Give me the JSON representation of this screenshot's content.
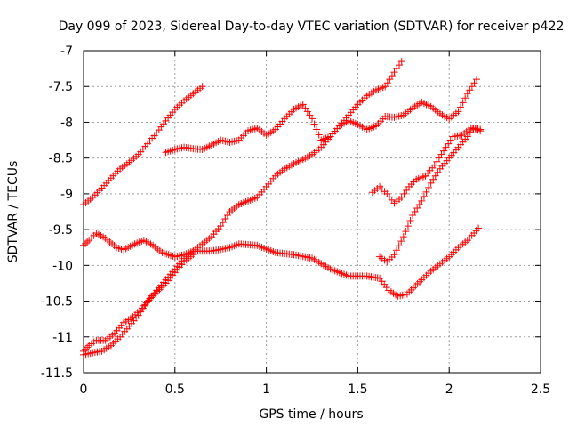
{
  "chart_data": {
    "type": "scatter",
    "title": "Day 099 of 2023, Sidereal Day-to-day VTEC variation (SDTVAR) for receiver p422",
    "xlabel": "GPS time / hours",
    "ylabel": "SDTVAR / TECUs",
    "xlim": [
      0,
      2.5
    ],
    "ylim": [
      -11.5,
      -7
    ],
    "xticks": [
      "0",
      "0.5",
      "1",
      "1.5",
      "2",
      "2.5"
    ],
    "yticks": [
      "-7",
      "-7.5",
      "-8",
      "-8.5",
      "-9",
      "-9.5",
      "-10",
      "-10.5",
      "-11",
      "-11.5"
    ],
    "xtick_values": [
      0,
      0.5,
      1,
      1.5,
      2,
      2.5
    ],
    "ytick_values": [
      -7,
      -7.5,
      -8,
      -8.5,
      -9,
      -9.5,
      -10,
      -10.5,
      -11,
      -11.5
    ],
    "grid": true,
    "marker": "+",
    "color": "#ff0000",
    "series": [
      {
        "points": [
          [
            0,
            -9.15
          ],
          [
            0.05,
            -9.05
          ],
          [
            0.1,
            -8.92
          ],
          [
            0.15,
            -8.78
          ],
          [
            0.2,
            -8.65
          ],
          [
            0.25,
            -8.56
          ],
          [
            0.3,
            -8.45
          ],
          [
            0.35,
            -8.3
          ],
          [
            0.4,
            -8.15
          ],
          [
            0.45,
            -7.98
          ],
          [
            0.5,
            -7.82
          ],
          [
            0.55,
            -7.7
          ],
          [
            0.6,
            -7.6
          ],
          [
            0.65,
            -7.5
          ]
        ]
      },
      {
        "points": [
          [
            0.45,
            -8.42
          ],
          [
            0.5,
            -8.38
          ],
          [
            0.55,
            -8.35
          ],
          [
            0.6,
            -8.37
          ],
          [
            0.65,
            -8.38
          ],
          [
            0.7,
            -8.32
          ],
          [
            0.75,
            -8.25
          ],
          [
            0.8,
            -8.28
          ],
          [
            0.85,
            -8.25
          ],
          [
            0.9,
            -8.12
          ],
          [
            0.95,
            -8.08
          ],
          [
            1.0,
            -8.18
          ],
          [
            1.05,
            -8.1
          ],
          [
            1.1,
            -7.95
          ],
          [
            1.15,
            -7.82
          ],
          [
            1.2,
            -7.75
          ],
          [
            1.25,
            -7.95
          ],
          [
            1.3,
            -8.25
          ],
          [
            1.35,
            -8.2
          ],
          [
            1.4,
            -8.05
          ],
          [
            1.45,
            -7.98
          ],
          [
            1.5,
            -8.03
          ],
          [
            1.55,
            -8.1
          ],
          [
            1.6,
            -8.05
          ],
          [
            1.65,
            -7.92
          ],
          [
            1.7,
            -7.93
          ],
          [
            1.75,
            -7.9
          ],
          [
            1.8,
            -7.8
          ],
          [
            1.85,
            -7.72
          ],
          [
            1.9,
            -7.78
          ],
          [
            1.95,
            -7.88
          ],
          [
            2.0,
            -7.95
          ],
          [
            2.05,
            -7.85
          ],
          [
            2.1,
            -7.6
          ],
          [
            2.15,
            -7.4
          ]
        ]
      },
      {
        "points": [
          [
            0,
            -9.72
          ],
          [
            0.03,
            -9.65
          ],
          [
            0.07,
            -9.55
          ],
          [
            0.12,
            -9.62
          ],
          [
            0.18,
            -9.75
          ],
          [
            0.22,
            -9.78
          ],
          [
            0.28,
            -9.7
          ],
          [
            0.33,
            -9.65
          ],
          [
            0.38,
            -9.72
          ],
          [
            0.43,
            -9.82
          ],
          [
            0.5,
            -9.88
          ],
          [
            0.55,
            -9.85
          ],
          [
            0.6,
            -9.8
          ],
          [
            0.7,
            -9.8
          ],
          [
            0.8,
            -9.75
          ],
          [
            0.85,
            -9.7
          ],
          [
            0.95,
            -9.72
          ],
          [
            1.05,
            -9.82
          ],
          [
            1.15,
            -9.85
          ],
          [
            1.25,
            -9.9
          ],
          [
            1.35,
            -10.05
          ],
          [
            1.45,
            -10.15
          ],
          [
            1.55,
            -10.15
          ],
          [
            1.62,
            -10.18
          ],
          [
            1.67,
            -10.35
          ],
          [
            1.72,
            -10.43
          ],
          [
            1.77,
            -10.4
          ],
          [
            1.85,
            -10.2
          ],
          [
            1.9,
            -10.08
          ],
          [
            1.95,
            -9.98
          ],
          [
            2.0,
            -9.88
          ],
          [
            2.05,
            -9.75
          ],
          [
            2.1,
            -9.65
          ],
          [
            2.16,
            -9.48
          ]
        ]
      },
      {
        "points": [
          [
            0,
            -11.25
          ],
          [
            0.05,
            -11.22
          ],
          [
            0.1,
            -11.2
          ],
          [
            0.15,
            -11.12
          ],
          [
            0.2,
            -11.0
          ],
          [
            0.25,
            -10.85
          ],
          [
            0.3,
            -10.7
          ],
          [
            0.35,
            -10.5
          ],
          [
            0.4,
            -10.35
          ],
          [
            0.45,
            -10.2
          ],
          [
            0.5,
            -10.05
          ],
          [
            0.55,
            -9.9
          ],
          [
            0.6,
            -9.8
          ],
          [
            0.65,
            -9.7
          ],
          [
            0.7,
            -9.6
          ],
          [
            0.75,
            -9.45
          ],
          [
            0.8,
            -9.25
          ],
          [
            0.85,
            -9.15
          ],
          [
            0.9,
            -9.1
          ],
          [
            0.95,
            -9.05
          ],
          [
            1.0,
            -8.9
          ],
          [
            1.05,
            -8.75
          ],
          [
            1.1,
            -8.65
          ],
          [
            1.15,
            -8.58
          ],
          [
            1.2,
            -8.52
          ],
          [
            1.25,
            -8.45
          ],
          [
            1.3,
            -8.35
          ],
          [
            1.35,
            -8.2
          ],
          [
            1.4,
            -8.05
          ],
          [
            1.45,
            -7.9
          ],
          [
            1.5,
            -7.75
          ],
          [
            1.55,
            -7.63
          ],
          [
            1.6,
            -7.55
          ],
          [
            1.65,
            -7.5
          ],
          [
            1.7,
            -7.3
          ],
          [
            1.74,
            -7.15
          ]
        ]
      },
      {
        "points": [
          [
            0,
            -11.2
          ],
          [
            0.03,
            -11.12
          ],
          [
            0.07,
            -11.05
          ],
          [
            0.12,
            -11.05
          ],
          [
            0.17,
            -10.95
          ],
          [
            0.22,
            -10.8
          ],
          [
            0.27,
            -10.72
          ],
          [
            0.32,
            -10.6
          ],
          [
            0.37,
            -10.45
          ],
          [
            0.45,
            -10.25
          ],
          [
            0.5,
            -10.1
          ],
          [
            0.55,
            -9.95
          ],
          [
            0.6,
            -9.85
          ]
        ]
      },
      {
        "points": [
          [
            1.58,
            -8.98
          ],
          [
            1.62,
            -8.9
          ],
          [
            1.66,
            -9.0
          ],
          [
            1.7,
            -9.13
          ],
          [
            1.74,
            -9.05
          ],
          [
            1.78,
            -8.9
          ],
          [
            1.82,
            -8.8
          ],
          [
            1.87,
            -8.75
          ],
          [
            1.92,
            -8.6
          ],
          [
            1.97,
            -8.4
          ],
          [
            2.02,
            -8.2
          ],
          [
            2.07,
            -8.18
          ],
          [
            2.12,
            -8.08
          ],
          [
            2.17,
            -8.12
          ]
        ]
      },
      {
        "points": [
          [
            1.62,
            -9.88
          ],
          [
            1.66,
            -9.95
          ],
          [
            1.7,
            -9.85
          ],
          [
            1.75,
            -9.6
          ],
          [
            1.8,
            -9.3
          ],
          [
            1.85,
            -9.1
          ],
          [
            1.9,
            -8.85
          ],
          [
            1.95,
            -8.65
          ],
          [
            2.0,
            -8.5
          ],
          [
            2.05,
            -8.35
          ],
          [
            2.1,
            -8.2
          ],
          [
            2.13,
            -8.08
          ],
          [
            2.17,
            -8.1
          ]
        ]
      }
    ]
  }
}
